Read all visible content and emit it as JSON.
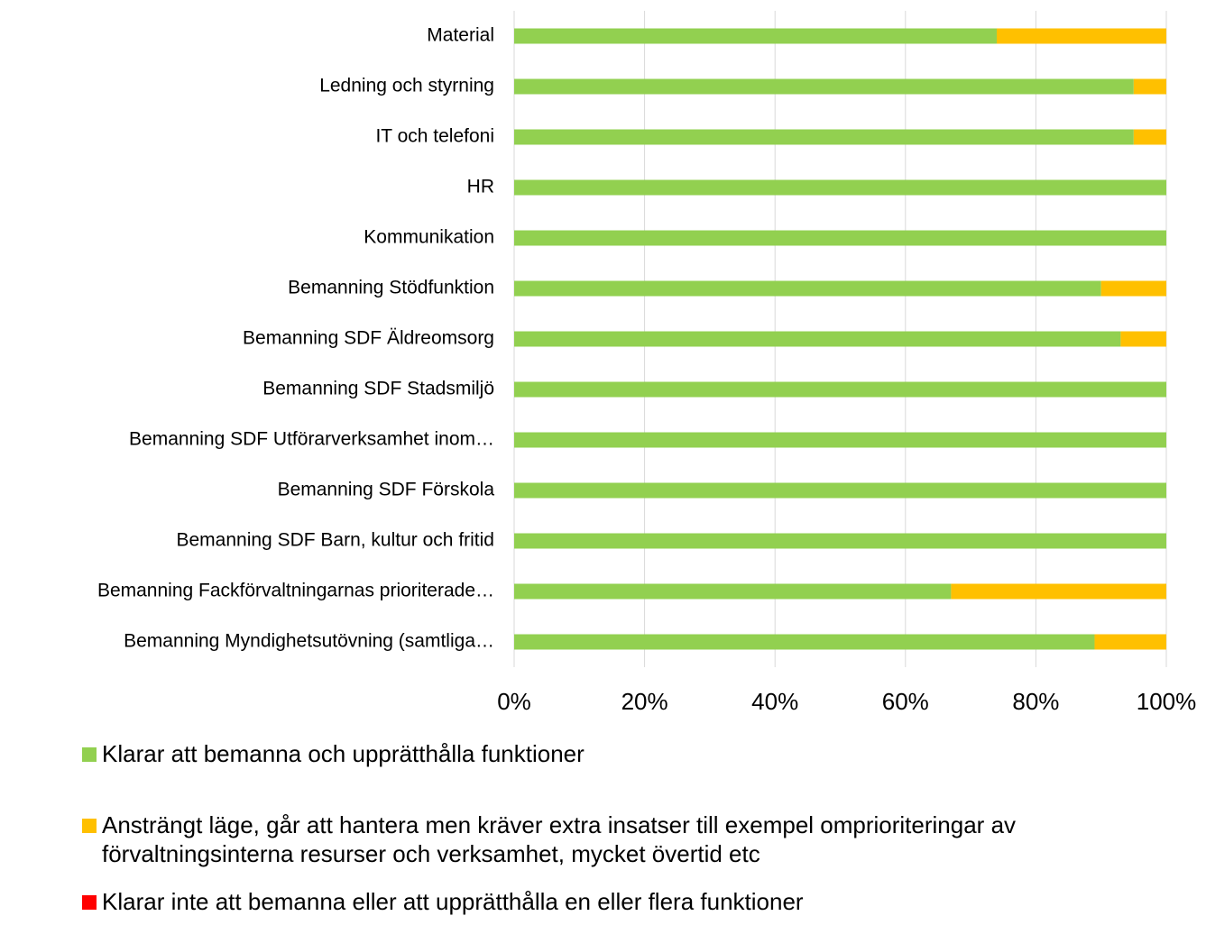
{
  "chart_data": {
    "type": "stacked_barh",
    "categories": [
      "Material",
      "Ledning och styrning",
      "IT och telefoni",
      "HR",
      "Kommunikation",
      "Bemanning Stödfunktion",
      "Bemanning SDF Äldreomsorg",
      "Bemanning SDF Stadsmiljö",
      "Bemanning SDF Utförarverksamhet inom…",
      "Bemanning SDF Förskola",
      "Bemanning SDF Barn, kultur och fritid",
      "Bemanning Fackförvaltningarnas prioriterade…",
      "Bemanning Myndighetsutövning (samtliga…"
    ],
    "series": [
      {
        "name": "Klarar att bemanna och upprätthålla funktioner",
        "color": "#92d050",
        "values": [
          74,
          95,
          95,
          100,
          100,
          90,
          93,
          100,
          100,
          100,
          100,
          67,
          89
        ]
      },
      {
        "name": "Ansträngt läge, går att hantera men kräver extra insatser till exempel omprioriteringar av förvaltningsinterna resurser och verksamhet, mycket övertid etc",
        "color": "#ffc000",
        "values": [
          26,
          5,
          5,
          0,
          0,
          10,
          7,
          0,
          0,
          0,
          0,
          33,
          11
        ]
      },
      {
        "name": "Klarar inte att bemanna eller att upprätthålla en eller flera funktioner",
        "color": "#ff0000",
        "values": [
          0,
          0,
          0,
          0,
          0,
          0,
          0,
          0,
          0,
          0,
          0,
          0,
          0
        ]
      }
    ],
    "xlim": [
      0,
      100
    ],
    "xticks": [
      {
        "value": 0,
        "label": "0%"
      },
      {
        "value": 20,
        "label": "20%"
      },
      {
        "value": 40,
        "label": "40%"
      },
      {
        "value": 60,
        "label": "60%"
      },
      {
        "value": 80,
        "label": "80%"
      },
      {
        "value": 100,
        "label": "100%"
      }
    ],
    "grid": true
  }
}
